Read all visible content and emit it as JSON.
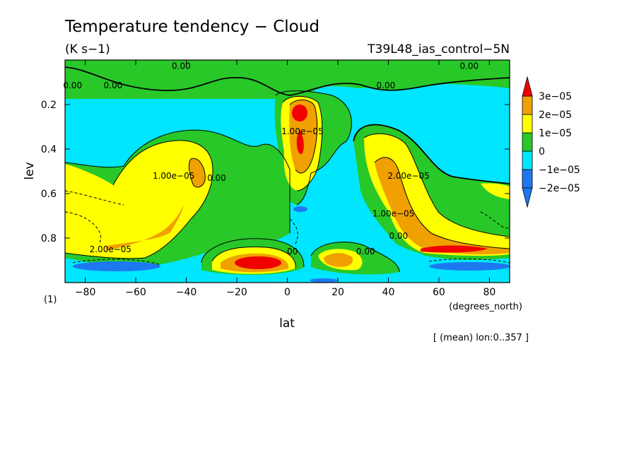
{
  "chart_data": {
    "type": "heatmap",
    "title": "Temperature tendency − Cloud",
    "units": "(K s−1)",
    "run_label": "T39L48_ias_control−5N",
    "xlabel": "lat",
    "xunits": "(degrees_north)",
    "ylabel": "lev",
    "yunits": "(1)",
    "footnote": "[ (mean) lon:0..357 ]",
    "xlim": [
      -88,
      88
    ],
    "ylim": [
      1.0,
      0.0
    ],
    "x_ticks": [
      -80,
      -60,
      -40,
      -20,
      0,
      20,
      40,
      60,
      80
    ],
    "x_tick_labels": [
      "−80",
      "−60",
      "−40",
      "−20",
      "0",
      "20",
      "40",
      "60",
      "80"
    ],
    "y_ticks": [
      0.2,
      0.4,
      0.6,
      0.8
    ],
    "y_tick_labels": [
      "0.2",
      "0.4",
      "0.6",
      "0.8"
    ],
    "colorbar": {
      "levels": [
        -2e-05,
        -1e-05,
        0,
        1e-05,
        2e-05,
        3e-05
      ],
      "labels": [
        "−2e−05",
        "−1e−05",
        "0",
        "1e−05",
        "2e−05",
        "3e−05"
      ],
      "colors": [
        "#1e78f0",
        "#00e6ff",
        "#28c828",
        "#ffff00",
        "#f0a000",
        "#f00000"
      ]
    },
    "contour_labels": [
      {
        "text": "0.00",
        "lat": -69,
        "lev": 0.115
      },
      {
        "text": "0.00",
        "lat": -85,
        "lev": 0.115
      },
      {
        "text": "0.00",
        "lat": -42,
        "lev": 0.027
      },
      {
        "text": "0.00",
        "lat": 72,
        "lev": 0.027
      },
      {
        "text": "0.00",
        "lat": 39,
        "lev": 0.115
      },
      {
        "text": "0.00",
        "lat": -28,
        "lev": 0.53
      },
      {
        "text": "0.00",
        "lat": 31,
        "lev": 0.86
      },
      {
        "text": "0.00",
        "lat": 44,
        "lev": 0.79
      },
      {
        "text": "1.00e−05",
        "lat": -45,
        "lev": 0.52
      },
      {
        "text": "1.00e−05",
        "lat": 6,
        "lev": 0.32
      },
      {
        "text": "2.00e−05",
        "lat": -70,
        "lev": 0.85
      },
      {
        "text": "2.00e−05",
        "lat": 48,
        "lev": 0.52
      },
      {
        "text": "1.00e−05",
        "lat": 42,
        "lev": 0.69
      },
      {
        "text": "00",
        "lat": 2,
        "lev": 0.86
      }
    ],
    "regions": {
      "negative_background": "−1e−05 to 0",
      "upper_band": "0 to 1e−05",
      "max_centers": [
        {
          "lat": 5,
          "lev": 0.25,
          "value": "≥ 3e−05"
        },
        {
          "lat": 5,
          "lev": 0.37,
          "value": "≥ 3e−05"
        },
        {
          "lat": -12,
          "lev": 0.91,
          "value": "≥ 3e−05"
        },
        {
          "lat": 65,
          "lev": 0.85,
          "value": "≥ 3e−05"
        },
        {
          "lat": -42,
          "lev": 0.5,
          "value": "2e−05 to 3e−05"
        }
      ]
    }
  }
}
